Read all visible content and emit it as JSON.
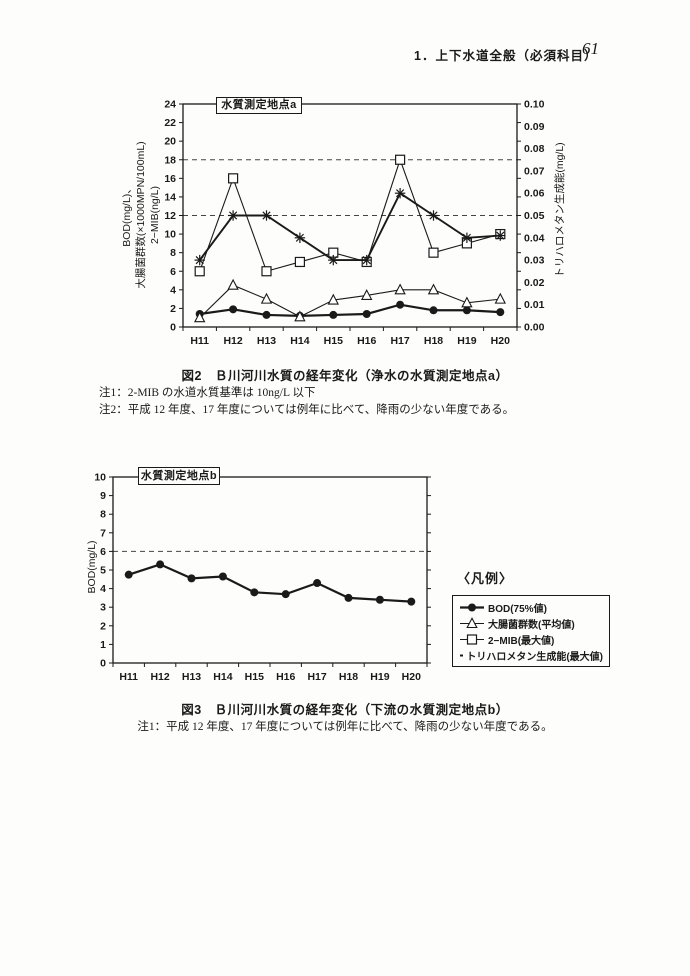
{
  "page": {
    "header": "1．上下水道全般（必須科目）",
    "page_number": "61"
  },
  "colors": {
    "ink": "#1a1a1a",
    "paper": "#fdfdfb"
  },
  "figure2": {
    "caption": "図2　Ｂ川河川水質の経年変化（浄水の水質測定地点a）",
    "notes": [
      "注1：2-MIB の水道水質基準は 10ng/L 以下",
      "注2：平成 12 年度、17 年度については例年に比べて、降雨の少ない年度である。"
    ]
  },
  "figure3": {
    "caption": "図3　Ｂ川河川水質の経年変化（下流の水質測定地点b）",
    "notes": [
      "注1：平成 12 年度、17 年度については例年に比べて、降雨の少ない年度である。"
    ]
  },
  "legend": {
    "title": "〈凡例〉",
    "items": [
      {
        "marker": "circle-filled",
        "label": "BOD(75%値)"
      },
      {
        "marker": "triangle-open",
        "label": "大腸菌群数(平均値)"
      },
      {
        "marker": "square-open",
        "label": "2−MIB(最大値)"
      },
      {
        "marker": "asterisk",
        "label": "トリハロメタン生成能(最大値)"
      }
    ]
  },
  "chart_data": [
    {
      "type": "line",
      "title": "水質測定地点a",
      "categories": [
        "H11",
        "H12",
        "H13",
        "H14",
        "H15",
        "H16",
        "H17",
        "H18",
        "H19",
        "H20"
      ],
      "ylabel_left_lines": [
        "BOD(mg/L)、",
        "大腸菌群数(×1000MPN/100mL)",
        "2−MIB(ng/L)"
      ],
      "ylabel_right": "トリハロメタン生成能(mg/L)",
      "ylim_left": [
        0,
        24
      ],
      "yticks_left": [
        0,
        2,
        4,
        6,
        8,
        10,
        12,
        14,
        16,
        18,
        20,
        22,
        24
      ],
      "ylim_right": [
        0,
        0.1
      ],
      "yticks_right": [
        "0.00",
        "0.01",
        "0.02",
        "0.03",
        "0.04",
        "0.05",
        "0.06",
        "0.07",
        "0.08",
        "0.09",
        "0.10"
      ],
      "gridlines_left": [
        12,
        18
      ],
      "grid": "reference-lines-only",
      "legend_position": "outside-separate-box",
      "series": [
        {
          "name": "BOD(75%値)",
          "axis": "left",
          "marker": "circle-filled",
          "values": [
            1.4,
            1.9,
            1.3,
            1.2,
            1.3,
            1.4,
            2.4,
            1.8,
            1.8,
            1.6
          ]
        },
        {
          "name": "大腸菌群数(平均値)",
          "axis": "left",
          "marker": "triangle-open",
          "values": [
            1.0,
            4.5,
            3.0,
            1.1,
            2.9,
            3.4,
            4.0,
            4.0,
            2.6,
            3.0
          ]
        },
        {
          "name": "2−MIB(最大値)",
          "axis": "left",
          "marker": "square-open",
          "values": [
            6,
            16,
            6,
            7,
            8,
            7,
            18,
            8,
            9,
            10
          ]
        },
        {
          "name": "トリハロメタン生成能(最大値)",
          "axis": "right",
          "marker": "asterisk",
          "values": [
            0.03,
            0.05,
            0.05,
            0.04,
            0.03,
            0.03,
            0.06,
            0.05,
            0.04,
            0.041
          ]
        }
      ]
    },
    {
      "type": "line",
      "title": "水質測定地点b",
      "categories": [
        "H11",
        "H12",
        "H13",
        "H14",
        "H15",
        "H16",
        "H17",
        "H18",
        "H19",
        "H20"
      ],
      "ylabel_left_lines": [
        "BOD(mg/L)"
      ],
      "ylim_left": [
        0,
        10
      ],
      "yticks_left": [
        0,
        1,
        2,
        3,
        4,
        5,
        6,
        7,
        8,
        9,
        10
      ],
      "gridlines_left": [
        6
      ],
      "grid": "reference-lines-only",
      "series": [
        {
          "name": "BOD(75%値)",
          "axis": "left",
          "marker": "circle-filled",
          "values": [
            4.75,
            5.3,
            4.55,
            4.65,
            3.8,
            3.7,
            4.3,
            3.5,
            3.4,
            3.3
          ]
        }
      ]
    }
  ]
}
